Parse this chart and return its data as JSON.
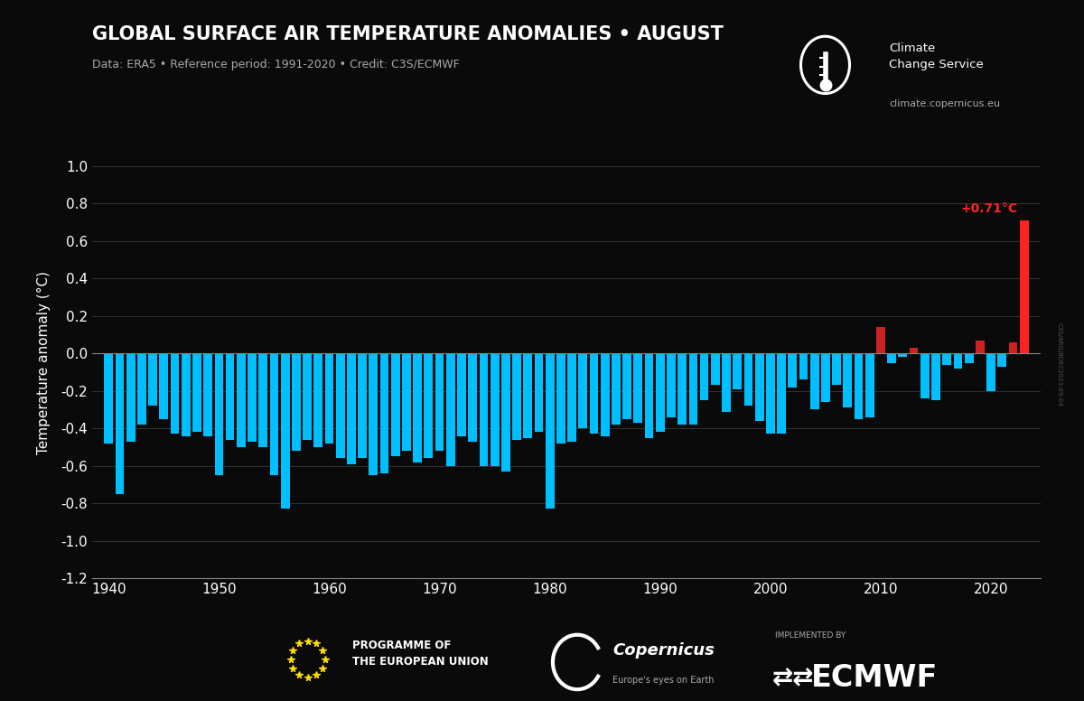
{
  "title": "GLOBAL SURFACE AIR TEMPERATURE ANOMALIES • AUGUST",
  "subtitle": "Data: ERA5 • Reference period: 1991-2020 • Credit: C3S/ECMWF",
  "ylabel": "Temperature anomaly (°C)",
  "watermark": "C3S/ARG/8DEC2023-09-04",
  "website": "climate.copernicus.eu",
  "background_color": "#0a0a0a",
  "bar_color_blue": "#00bfff",
  "bar_color_red": "#cc2222",
  "bar_color_highlight": "#ff2222",
  "grid_color": "#3a3a3a",
  "text_color": "#ffffff",
  "axis_line_color": "#888888",
  "highlight_label": "+0.71°C",
  "ylim": [
    -1.2,
    1.1
  ],
  "yticks": [
    -1.2,
    -1.0,
    -0.8,
    -0.6,
    -0.4,
    -0.2,
    0.0,
    0.2,
    0.4,
    0.6,
    0.8,
    1.0
  ],
  "xtick_years": [
    1940,
    1950,
    1960,
    1970,
    1980,
    1990,
    2000,
    2010,
    2020
  ],
  "xlim": [
    1938.5,
    2024.5
  ],
  "years": [
    1940,
    1941,
    1942,
    1943,
    1944,
    1945,
    1946,
    1947,
    1948,
    1949,
    1950,
    1951,
    1952,
    1953,
    1954,
    1955,
    1956,
    1957,
    1958,
    1959,
    1960,
    1961,
    1962,
    1963,
    1964,
    1965,
    1966,
    1967,
    1968,
    1969,
    1970,
    1971,
    1972,
    1973,
    1974,
    1975,
    1976,
    1977,
    1978,
    1979,
    1980,
    1981,
    1982,
    1983,
    1984,
    1985,
    1986,
    1987,
    1988,
    1989,
    1990,
    1991,
    1992,
    1993,
    1994,
    1995,
    1996,
    1997,
    1998,
    1999,
    2000,
    2001,
    2002,
    2003,
    2004,
    2005,
    2006,
    2007,
    2008,
    2009,
    2010,
    2011,
    2012,
    2013,
    2014,
    2015,
    2016,
    2017,
    2018,
    2019,
    2020,
    2021,
    2022,
    2023
  ],
  "anomalies": [
    -0.48,
    -0.75,
    -0.47,
    -0.38,
    -0.28,
    -0.35,
    -0.43,
    -0.44,
    -0.42,
    -0.44,
    -0.65,
    -0.46,
    -0.5,
    -0.47,
    -0.5,
    -0.65,
    -0.83,
    -0.52,
    -0.46,
    -0.5,
    -0.48,
    -0.56,
    -0.59,
    -0.56,
    -0.65,
    -0.64,
    -0.55,
    -0.52,
    -0.58,
    -0.56,
    -0.52,
    -0.6,
    -0.44,
    -0.47,
    -0.6,
    -0.6,
    -0.63,
    -0.46,
    -0.45,
    -0.42,
    -0.83,
    -0.48,
    -0.47,
    -0.4,
    -0.43,
    -0.44,
    -0.38,
    -0.35,
    -0.37,
    -0.45,
    -0.42,
    -0.34,
    -0.38,
    -0.38,
    -0.25,
    -0.17,
    -0.31,
    -0.19,
    -0.28,
    -0.36,
    -0.43,
    -0.43,
    -0.18,
    -0.14,
    -0.3,
    -0.26,
    -0.17,
    -0.29,
    -0.35,
    -0.34,
    0.14,
    -0.05,
    -0.02,
    0.03,
    -0.24,
    -0.25,
    -0.06,
    -0.08,
    -0.05,
    0.07,
    -0.2,
    -0.07,
    0.06,
    0.71
  ]
}
